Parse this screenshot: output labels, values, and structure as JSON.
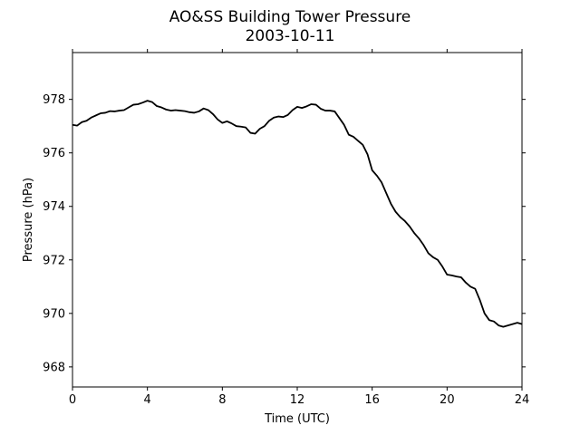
{
  "chart_data": {
    "type": "line",
    "title": "AO&SS Building Tower Pressure",
    "subtitle": "2003-10-11",
    "xlabel": "Time (UTC)",
    "ylabel": "Pressure (hPa)",
    "xlim": [
      0,
      24
    ],
    "ylim": [
      967.25,
      979.75
    ],
    "xticks": [
      "0",
      "4",
      "8",
      "12",
      "16",
      "20",
      "24"
    ],
    "yticks": [
      "968",
      "970",
      "972",
      "974",
      "976",
      "978"
    ],
    "grid": false,
    "series": [
      {
        "color": "#000000",
        "x": [
          0,
          0.25,
          0.5,
          0.75,
          1.0,
          1.25,
          1.5,
          1.75,
          2.0,
          2.25,
          2.5,
          2.75,
          3.0,
          3.25,
          3.5,
          3.75,
          4.0,
          4.25,
          4.5,
          4.75,
          5.0,
          5.25,
          5.5,
          5.75,
          6.0,
          6.25,
          6.5,
          6.75,
          7.0,
          7.25,
          7.5,
          7.75,
          8.0,
          8.25,
          8.5,
          8.75,
          9.0,
          9.25,
          9.5,
          9.75,
          10.0,
          10.25,
          10.5,
          10.75,
          11.0,
          11.25,
          11.5,
          11.75,
          12.0,
          12.25,
          12.5,
          12.75,
          13.0,
          13.25,
          13.5,
          13.75,
          14.0,
          14.25,
          14.5,
          14.75,
          15.0,
          15.25,
          15.5,
          15.75,
          16.0,
          16.25,
          16.5,
          16.75,
          17.0,
          17.25,
          17.5,
          17.75,
          18.0,
          18.25,
          18.5,
          18.75,
          19.0,
          19.25,
          19.5,
          19.75,
          20.0,
          20.25,
          20.5,
          20.75,
          21.0,
          21.25,
          21.5,
          21.75,
          22.0,
          22.25,
          22.5,
          22.75,
          23.0,
          23.25,
          23.5,
          23.75,
          24.0
        ],
        "y": [
          977.05,
          977.02,
          977.15,
          977.2,
          977.32,
          977.4,
          977.48,
          977.5,
          977.56,
          977.55,
          977.58,
          977.6,
          977.7,
          977.8,
          977.82,
          977.88,
          977.95,
          977.9,
          977.75,
          977.7,
          977.62,
          977.58,
          977.6,
          977.58,
          977.56,
          977.52,
          977.5,
          977.55,
          977.66,
          977.6,
          977.45,
          977.25,
          977.12,
          977.18,
          977.1,
          977.0,
          976.98,
          976.95,
          976.75,
          976.72,
          976.9,
          977.0,
          977.2,
          977.32,
          977.36,
          977.34,
          977.42,
          977.6,
          977.72,
          977.68,
          977.74,
          977.82,
          977.8,
          977.65,
          977.58,
          977.58,
          977.55,
          977.3,
          977.05,
          976.68,
          976.6,
          976.45,
          976.3,
          975.95,
          975.35,
          975.15,
          974.9,
          974.5,
          974.1,
          973.8,
          973.6,
          973.45,
          973.25,
          973.0,
          972.8,
          972.55,
          972.25,
          972.1,
          972.0,
          971.75,
          971.45,
          971.42,
          971.38,
          971.35,
          971.15,
          971.0,
          970.92,
          970.5,
          970.0,
          969.75,
          969.7,
          969.55,
          969.5,
          969.55,
          969.6,
          969.65,
          969.6
        ]
      }
    ]
  }
}
